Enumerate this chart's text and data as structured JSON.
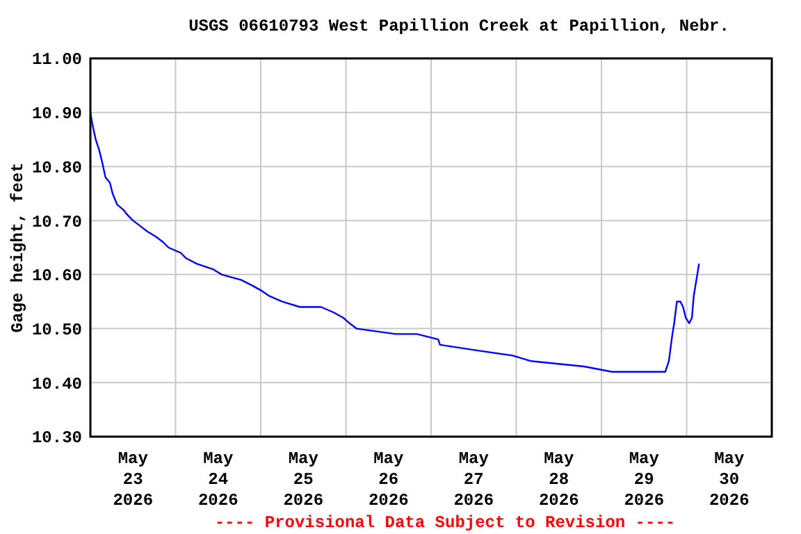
{
  "chart_data": {
    "type": "line",
    "title": "USGS 06610793 West Papillion Creek at Papillion, Nebr.",
    "ylabel": "Gage height, feet",
    "annotations": [
      "---- Provisional Data Subject to Revision ----"
    ],
    "x": [
      "2026-05-23T00:00",
      "2026-05-23T00:30",
      "2026-05-23T01:30",
      "2026-05-23T02:30",
      "2026-05-23T03:15",
      "2026-05-23T04:15",
      "2026-05-23T05:30",
      "2026-05-23T06:15",
      "2026-05-23T07:30",
      "2026-05-23T09:15",
      "2026-05-23T10:30",
      "2026-05-23T12:00",
      "2026-05-23T14:00",
      "2026-05-23T16:00",
      "2026-05-23T18:30",
      "2026-05-23T20:30",
      "2026-05-23T22:00",
      "2026-05-24T01:30",
      "2026-05-24T03:00",
      "2026-05-24T06:00",
      "2026-05-24T10:30",
      "2026-05-24T13:00",
      "2026-05-24T18:30",
      "2026-05-24T21:30",
      "2026-05-25T00:15",
      "2026-05-25T02:30",
      "2026-05-25T06:00",
      "2026-05-25T11:00",
      "2026-05-25T17:00",
      "2026-05-25T20:30",
      "2026-05-25T23:15",
      "2026-05-26T01:00",
      "2026-05-26T03:00",
      "2026-05-26T14:00",
      "2026-05-26T20:00",
      "2026-05-27T02:00",
      "2026-05-27T02:30",
      "2026-05-27T12:30",
      "2026-05-27T23:00",
      "2026-05-28T04:00",
      "2026-05-28T19:00",
      "2026-05-29T03:00",
      "2026-05-29T18:00",
      "2026-05-29T19:00",
      "2026-05-29T20:00",
      "2026-05-29T20:30",
      "2026-05-29T21:15",
      "2026-05-29T22:15",
      "2026-05-29T23:00",
      "2026-05-29T23:45",
      "2026-05-30T00:45",
      "2026-05-30T01:30",
      "2026-05-30T02:00",
      "2026-05-30T02:45",
      "2026-05-30T03:30"
    ],
    "series": [
      {
        "color": "#0000ff",
        "values": [
          10.9,
          10.88,
          10.85,
          10.83,
          10.81,
          10.78,
          10.77,
          10.75,
          10.73,
          10.72,
          10.71,
          10.7,
          10.69,
          10.68,
          10.67,
          10.66,
          10.65,
          10.64,
          10.63,
          10.62,
          10.61,
          10.6,
          10.59,
          10.58,
          10.57,
          10.56,
          10.55,
          10.54,
          10.54,
          10.53,
          10.52,
          10.51,
          10.5,
          10.49,
          10.49,
          10.48,
          10.47,
          10.46,
          10.45,
          10.44,
          10.43,
          10.42,
          10.42,
          10.44,
          10.49,
          10.51,
          10.55,
          10.55,
          10.54,
          10.52,
          10.51,
          10.52,
          10.56,
          10.59,
          10.62
        ]
      }
    ],
    "xlim": [
      "2026-05-23T00:00",
      "2026-05-31T00:00"
    ],
    "xticks": [
      {
        "value": "2026-05-23T12:00",
        "label": "May\n23\n2026"
      },
      {
        "value": "2026-05-24T12:00",
        "label": "May\n24\n2026"
      },
      {
        "value": "2026-05-25T12:00",
        "label": "May\n25\n2026"
      },
      {
        "value": "2026-05-26T12:00",
        "label": "May\n26\n2026"
      },
      {
        "value": "2026-05-27T12:00",
        "label": "May\n27\n2026"
      },
      {
        "value": "2026-05-28T12:00",
        "label": "May\n28\n2026"
      },
      {
        "value": "2026-05-29T12:00",
        "label": "May\n29\n2026"
      },
      {
        "value": "2026-05-30T12:00",
        "label": "May\n30\n2026"
      },
      {
        "value": "2026-05-24T00:00",
        "label": null
      },
      {
        "value": "2026-05-25T00:00",
        "label": null
      },
      {
        "value": "2026-05-26T00:00",
        "label": null
      },
      {
        "value": "2026-05-27T00:00",
        "label": null
      },
      {
        "value": "2026-05-28T00:00",
        "label": null
      },
      {
        "value": "2026-05-29T00:00",
        "label": null
      },
      {
        "value": "2026-05-30T00:00",
        "label": null
      }
    ],
    "ylim": [
      10.3,
      11.0
    ],
    "yticks": [
      {
        "value": 10.3,
        "label": "10.30"
      },
      {
        "value": 10.4,
        "label": "10.40"
      },
      {
        "value": 10.5,
        "label": "10.50"
      },
      {
        "value": 10.6,
        "label": "10.60"
      },
      {
        "value": 10.7,
        "label": "10.70"
      },
      {
        "value": 10.8,
        "label": "10.80"
      },
      {
        "value": 10.9,
        "label": "10.90"
      },
      {
        "value": 11.0,
        "label": "11.00"
      }
    ],
    "grid": true
  }
}
